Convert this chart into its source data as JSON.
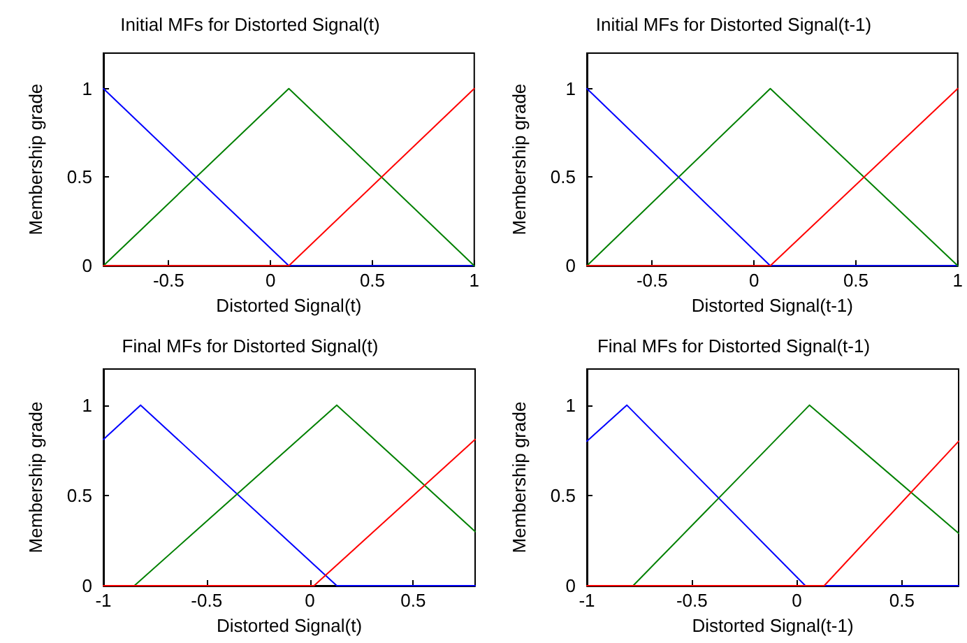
{
  "chart_data": [
    {
      "type": "line",
      "title": "Initial MFs for Distorted Signal(t)",
      "xlabel": "Distorted Signal(t)",
      "ylabel": "Membership grade",
      "xlim": [
        -0.82,
        1
      ],
      "xticks": [
        -0.5,
        0,
        0.5,
        1
      ],
      "ylim": [
        0,
        1.2
      ],
      "yticks": [
        0,
        0.5,
        1
      ],
      "marker": "none",
      "series": [
        {
          "color": "#0000ff",
          "x": [
            -0.82,
            0.09,
            1
          ],
          "values": [
            1,
            0,
            0
          ]
        },
        {
          "color": "#008000",
          "x": [
            -0.82,
            0.09,
            1
          ],
          "values": [
            0,
            1,
            0
          ]
        },
        {
          "color": "#ff0000",
          "x": [
            -0.82,
            0.09,
            1
          ],
          "values": [
            0,
            0,
            1
          ]
        }
      ]
    },
    {
      "type": "line",
      "title": "Initial MFs for Distorted Signal(t-1)",
      "xlabel": "Distorted Signal(t-1)",
      "ylabel": "Membership grade",
      "xlim": [
        -0.82,
        1
      ],
      "xticks": [
        -0.5,
        0,
        0.5,
        1
      ],
      "ylim": [
        0,
        1.2
      ],
      "yticks": [
        0,
        0.5,
        1
      ],
      "marker": "none",
      "series": [
        {
          "color": "#0000ff",
          "x": [
            -0.82,
            0.08,
            1
          ],
          "values": [
            1,
            0,
            0
          ]
        },
        {
          "color": "#008000",
          "x": [
            -0.82,
            0.08,
            1
          ],
          "values": [
            0,
            1,
            0
          ]
        },
        {
          "color": "#ff0000",
          "x": [
            -0.82,
            0.08,
            1
          ],
          "values": [
            0,
            0,
            1
          ]
        }
      ]
    },
    {
      "type": "line",
      "title": "Final MFs for Distorted Signal(t)",
      "xlabel": "Distorted Signal(t)",
      "ylabel": "Membership grade",
      "xlim": [
        -1,
        0.8
      ],
      "xticks": [
        -1,
        -0.5,
        0,
        0.5
      ],
      "ylim": [
        0,
        1.2
      ],
      "yticks": [
        0,
        0.5,
        1
      ],
      "marker": "none",
      "series": [
        {
          "color": "#0000ff",
          "x": [
            -1,
            -0.82,
            0.13,
            0.8
          ],
          "values": [
            0.81,
            1,
            0,
            0
          ]
        },
        {
          "color": "#008000",
          "x": [
            -1,
            -0.85,
            0.13,
            0.8
          ],
          "values": [
            0,
            0,
            1,
            0.3
          ]
        },
        {
          "color": "#ff0000",
          "x": [
            -1,
            0.02,
            0.8
          ],
          "values": [
            0,
            0,
            0.81
          ]
        }
      ]
    },
    {
      "type": "line",
      "title": "Final MFs for Distorted Signal(t-1)",
      "xlabel": "Distorted Signal(t-1)",
      "ylabel": "Membership grade",
      "xlim": [
        -1,
        0.77
      ],
      "xticks": [
        -1,
        -0.5,
        0,
        0.5
      ],
      "ylim": [
        0,
        1.2
      ],
      "yticks": [
        0,
        0.5,
        1
      ],
      "marker": "none",
      "series": [
        {
          "color": "#0000ff",
          "x": [
            -1,
            -0.81,
            0.04,
            0.77
          ],
          "values": [
            0.8,
            1,
            0,
            0
          ]
        },
        {
          "color": "#008000",
          "x": [
            -1,
            -0.78,
            0.06,
            0.77
          ],
          "values": [
            0,
            0,
            1,
            0.29
          ]
        },
        {
          "color": "#ff0000",
          "x": [
            -1,
            0.13,
            0.77
          ],
          "values": [
            0,
            0,
            0.8
          ]
        }
      ]
    }
  ]
}
